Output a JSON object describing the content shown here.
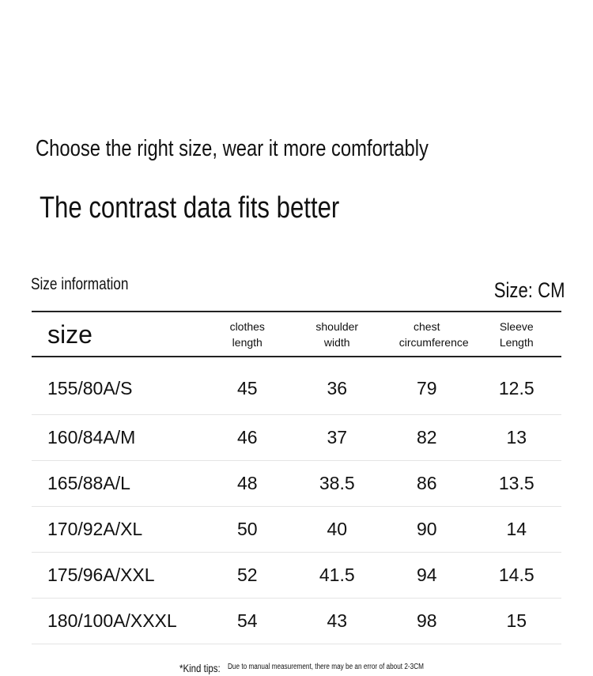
{
  "header": {
    "title": "Choose the right size, wear it more comfortably",
    "subtitle": "The contrast data fits better",
    "section": "Size information",
    "unit": "Size: CM"
  },
  "table": {
    "columns": [
      "size",
      "clothes length",
      "shoulder width",
      "chest circumference",
      "Sleeve Length"
    ],
    "rows": [
      [
        "155/80A/S",
        45,
        36,
        79,
        12.5
      ],
      [
        "160/84A/M",
        46,
        37,
        82,
        13
      ],
      [
        "165/88A/L",
        48,
        38.5,
        86,
        13.5
      ],
      [
        "170/92A/XL",
        50,
        40,
        90,
        14
      ],
      [
        "175/96A/XXL",
        52,
        41.5,
        94,
        14.5
      ],
      [
        "180/100A/XXXL",
        54,
        43,
        98,
        15
      ]
    ]
  },
  "footer": {
    "label": "*Kind tips:",
    "note": "Due to manual measurement, there may be an error of about 2-3CM"
  }
}
